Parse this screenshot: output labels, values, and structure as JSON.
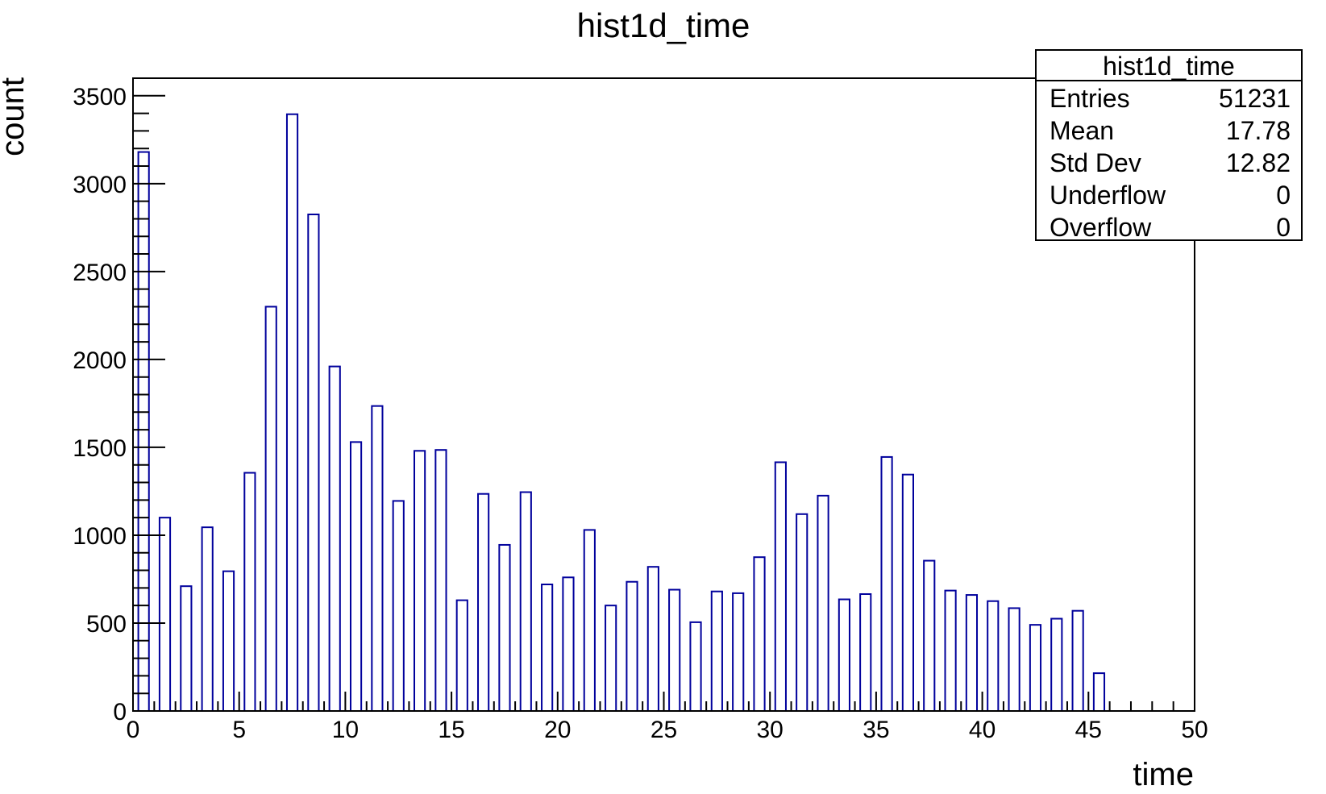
{
  "chart_data": {
    "type": "bar",
    "title": "hist1d_time",
    "xlabel": "time",
    "ylabel": "count",
    "xlim": [
      0,
      50
    ],
    "ylim": [
      0,
      3600
    ],
    "xticks": [
      "0",
      "5",
      "10",
      "15",
      "20",
      "25",
      "30",
      "35",
      "40",
      "45",
      "50"
    ],
    "yticks": [
      "0",
      "500",
      "1000",
      "1500",
      "2000",
      "2500",
      "3000",
      "3500"
    ],
    "bin_edges_start": 0,
    "bin_width": 1,
    "bar_fraction": 0.5,
    "values": [
      3180,
      1100,
      710,
      1045,
      795,
      1355,
      2300,
      3395,
      2825,
      1960,
      1530,
      1735,
      1195,
      1480,
      1485,
      630,
      1235,
      945,
      1245,
      720,
      760,
      1030,
      600,
      735,
      820,
      690,
      505,
      680,
      670,
      875,
      1415,
      1120,
      1225,
      635,
      665,
      1445,
      1345,
      855,
      685,
      660,
      625,
      585,
      490,
      525,
      570,
      215,
      0,
      0,
      0,
      0
    ],
    "bar_color": "#00009c",
    "grid": false,
    "stats_box": {
      "title": "hist1d_time",
      "rows": [
        {
          "label": "Entries",
          "value": "51231"
        },
        {
          "label": "Mean",
          "value": "17.78"
        },
        {
          "label": "Std Dev",
          "value": "12.82"
        },
        {
          "label": "Underflow",
          "value": "0"
        },
        {
          "label": "Overflow",
          "value": "0"
        }
      ]
    }
  }
}
